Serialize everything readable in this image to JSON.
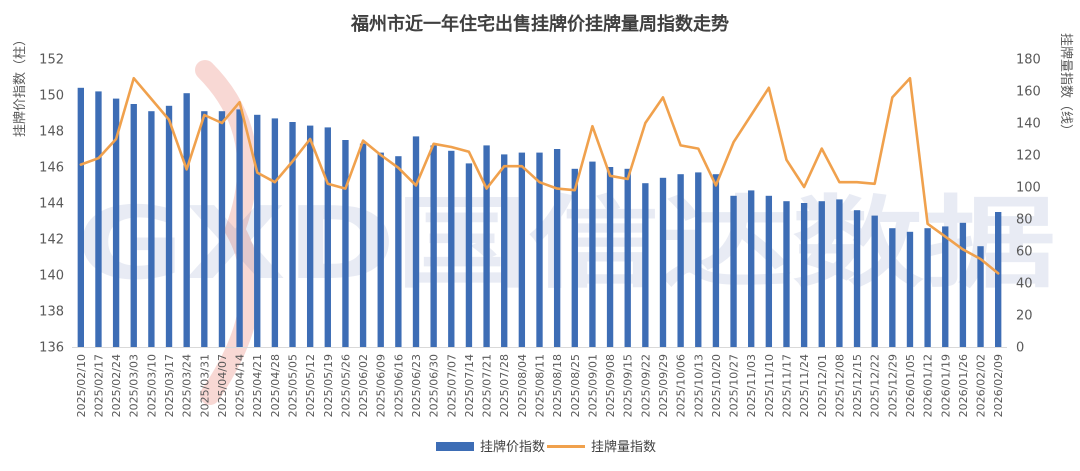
{
  "watermark": {
    "text": "GXD国信达数据",
    "color": "#2e4a9a"
  },
  "chart_data": {
    "type": "bar+line",
    "title": "福州市近一年住宅出售挂牌价挂牌量周指数走势",
    "ylabel_left": "挂牌价指数（柱）",
    "ylabel_right": "挂牌量指数（线）",
    "ylim_left": [
      136,
      152
    ],
    "yticks_left": [
      "136",
      "138",
      "140",
      "142",
      "144",
      "146",
      "148",
      "150",
      "152"
    ],
    "ylim_right": [
      0,
      180
    ],
    "yticks_right": [
      "0",
      "20",
      "40",
      "60",
      "80",
      "100",
      "120",
      "140",
      "160",
      "180"
    ],
    "grid": false,
    "legend_position": "bottom",
    "categories": [
      "2025/02/10",
      "2025/02/17",
      "2025/02/24",
      "2025/03/03",
      "2025/03/10",
      "2025/03/17",
      "2025/03/24",
      "2025/03/31",
      "2025/04/07",
      "2025/04/14",
      "2025/04/21",
      "2025/04/28",
      "2025/05/05",
      "2025/05/12",
      "2025/05/19",
      "2025/05/26",
      "2025/06/02",
      "2025/06/09",
      "2025/06/16",
      "2025/06/23",
      "2025/06/30",
      "2025/07/07",
      "2025/07/14",
      "2025/07/21",
      "2025/07/28",
      "2025/08/04",
      "2025/08/11",
      "2025/08/18",
      "2025/08/25",
      "2025/09/01",
      "2025/09/08",
      "2025/09/15",
      "2025/09/22",
      "2025/09/29",
      "2025/10/06",
      "2025/10/13",
      "2025/10/20",
      "2025/10/27",
      "2025/11/03",
      "2025/11/10",
      "2025/11/17",
      "2025/11/24",
      "2025/12/01",
      "2025/12/08",
      "2025/12/15",
      "2025/12/22",
      "2025/12/29",
      "2026/01/05",
      "2026/01/12",
      "2026/01/19",
      "2026/01/26",
      "2026/02/02",
      "2026/02/09"
    ],
    "series": [
      {
        "name": "挂牌价指数",
        "type": "bar",
        "axis": "left",
        "color": "#3d6db5",
        "values": [
          150.4,
          150.2,
          149.8,
          149.5,
          149.1,
          149.4,
          150.1,
          149.1,
          149.1,
          149.2,
          148.9,
          148.7,
          148.5,
          148.3,
          148.2,
          147.5,
          147.3,
          146.8,
          146.6,
          147.7,
          147.2,
          146.9,
          146.2,
          147.2,
          146.7,
          146.8,
          146.8,
          147.0,
          145.9,
          146.3,
          146.0,
          145.9,
          145.1,
          145.4,
          145.6,
          145.7,
          145.6,
          144.4,
          144.7,
          144.4,
          144.1,
          144.0,
          144.1,
          144.2,
          143.6,
          143.3,
          142.6,
          142.4,
          142.6,
          142.7,
          142.9,
          141.6,
          143.5
        ]
      },
      {
        "name": "挂牌量指数",
        "type": "line",
        "axis": "right",
        "color": "#f0a14d",
        "values": [
          114,
          118,
          130,
          168,
          155,
          142,
          111,
          145,
          140,
          153,
          109,
          103,
          116,
          130,
          102,
          99,
          129,
          120,
          112,
          101,
          127,
          125,
          122,
          99,
          113,
          113,
          103,
          99,
          98,
          138,
          107,
          105,
          140,
          156,
          126,
          124,
          101,
          128,
          145,
          162,
          117,
          100,
          124,
          103,
          103,
          102,
          156,
          168,
          77,
          69,
          61,
          55,
          46
        ]
      }
    ]
  }
}
